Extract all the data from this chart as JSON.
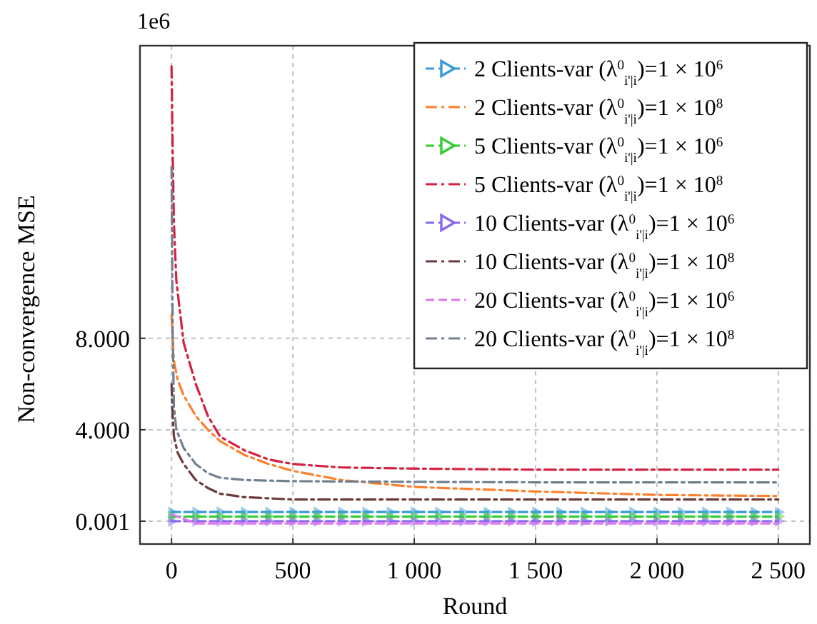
{
  "chart_data": {
    "type": "line",
    "xlabel": "Round",
    "ylabel": "Non-convergence MSE",
    "annotations": [
      "1e6"
    ],
    "xlim": [
      -130,
      2630
    ],
    "ylim": [
      -1,
      20.8
    ],
    "xticks": [
      0,
      500,
      {
        "value": 1000,
        "label": "1 000"
      },
      {
        "value": 1500,
        "label": "1 500"
      },
      {
        "value": 2000,
        "label": "2 000"
      },
      {
        "value": 2500,
        "label": "2 500"
      }
    ],
    "yticks": [
      {
        "value": 0.001,
        "label": "0.001"
      },
      {
        "value": 4,
        "label": "4.000"
      },
      {
        "value": 8,
        "label": "8.000"
      }
    ],
    "grid": true,
    "legend": "top right",
    "series": [
      {
        "name": "2 Clients-var (λ$^{0}$$_{i'|i}$)=1 × 10$^{6}$",
        "color": "#3a9ad9",
        "marker": "triangle",
        "line_style": "dashed",
        "x": [
          0,
          100,
          200,
          300,
          400,
          500,
          600,
          700,
          800,
          900,
          1000,
          1100,
          1200,
          1300,
          1400,
          1500,
          1600,
          1700,
          1800,
          1900,
          2000,
          2100,
          2200,
          2300,
          2400,
          2500
        ],
        "values": [
          0.4,
          0.4,
          0.4,
          0.4,
          0.4,
          0.4,
          0.4,
          0.4,
          0.4,
          0.4,
          0.4,
          0.4,
          0.4,
          0.4,
          0.4,
          0.4,
          0.4,
          0.4,
          0.4,
          0.4,
          0.4,
          0.4,
          0.4,
          0.4,
          0.4,
          0.4
        ]
      },
      {
        "name": "2 Clients-var (λ$^{0}$$_{i'|i}$)=1 × 10$^{8}$",
        "color": "#ff7f2a",
        "marker": "none",
        "line_style": "dashdot",
        "x": [
          0,
          10,
          25,
          50,
          100,
          150,
          200,
          300,
          400,
          500,
          700,
          1000,
          1500,
          2000,
          2500
        ],
        "values": [
          9,
          7,
          6.2,
          5.5,
          4.6,
          4,
          3.5,
          2.9,
          2.5,
          2.2,
          1.8,
          1.5,
          1.3,
          1.15,
          1.1
        ]
      },
      {
        "name": "5 Clients-var (λ$^{0}$$_{i'|i}$)=1 × 10$^{6}$",
        "color": "#33cc33",
        "marker": "triangle",
        "line_style": "dashed",
        "x": [
          0,
          100,
          200,
          300,
          400,
          500,
          600,
          700,
          800,
          900,
          1000,
          1100,
          1200,
          1300,
          1400,
          1500,
          1600,
          1700,
          1800,
          1900,
          2000,
          2100,
          2200,
          2300,
          2400,
          2500
        ],
        "values": [
          0.2,
          0.2,
          0.2,
          0.2,
          0.2,
          0.2,
          0.2,
          0.2,
          0.2,
          0.2,
          0.2,
          0.2,
          0.2,
          0.2,
          0.2,
          0.2,
          0.2,
          0.2,
          0.2,
          0.2,
          0.2,
          0.2,
          0.2,
          0.2,
          0.2,
          0.2
        ]
      },
      {
        "name": "5 Clients-var (λ$^{0}$$_{i'|i}$)=1 × 10$^{8}$",
        "color": "#d62040",
        "marker": "none",
        "line_style": "dashdot",
        "x": [
          0,
          5,
          10,
          20,
          50,
          100,
          150,
          200,
          300,
          400,
          500,
          700,
          1000,
          1500,
          2000,
          2500
        ],
        "values": [
          19.9,
          16,
          13,
          10.5,
          7.8,
          6,
          4.6,
          3.7,
          3.1,
          2.7,
          2.5,
          2.35,
          2.3,
          2.25,
          2.25,
          2.25
        ]
      },
      {
        "name": "10 Clients-var (λ$^{0}$$_{i'|i}$)=1 × 10$^{6}$",
        "color": "#8866ee",
        "marker": "triangle",
        "line_style": "dashed",
        "x": [
          0,
          100,
          200,
          300,
          400,
          500,
          600,
          700,
          800,
          900,
          1000,
          1100,
          1200,
          1300,
          1400,
          1500,
          1600,
          1700,
          1800,
          1900,
          2000,
          2100,
          2200,
          2300,
          2400,
          2500
        ],
        "values": [
          0,
          0,
          0,
          0,
          0,
          0,
          0,
          0,
          0,
          0,
          0,
          0,
          0,
          0,
          0,
          0,
          0,
          0,
          0,
          0,
          0,
          0,
          0,
          0,
          0,
          0
        ]
      },
      {
        "name": "10 Clients-var (λ$^{0}$$_{i'|i}$)=1 × 10$^{8}$",
        "color": "#6b3a3a",
        "marker": "none",
        "line_style": "dashdot",
        "x": [
          0,
          5,
          10,
          25,
          50,
          100,
          150,
          200,
          300,
          500,
          1000,
          1500,
          2000,
          2500
        ],
        "values": [
          6,
          4.5,
          3.7,
          3,
          2.5,
          1.8,
          1.45,
          1.2,
          1.05,
          0.95,
          0.95,
          0.95,
          0.95,
          0.95
        ]
      },
      {
        "name": "20 Clients-var (λ$^{0}$$_{i'|i}$)=1 × 10$^{6}$",
        "color": "#dd77ee",
        "line_style": "dashed",
        "x": [
          0,
          50,
          100,
          200,
          500,
          1000,
          1500,
          2000,
          2500
        ],
        "values": [
          0.3,
          0.1,
          -0.1,
          -0.1,
          -0.1,
          -0.1,
          -0.1,
          -0.1,
          -0.1
        ]
      },
      {
        "name": "20 Clients-var (λ$^{0}$$_{i'|i}$)=1 × 10$^{8}$",
        "color": "#708090",
        "marker": "none",
        "line_style": "dashdot",
        "x": [
          0,
          5,
          10,
          20,
          50,
          100,
          150,
          200,
          300,
          500,
          1000,
          1500,
          2000,
          2500
        ],
        "values": [
          15.5,
          8,
          5,
          4,
          3.2,
          2.5,
          2.1,
          1.9,
          1.8,
          1.75,
          1.72,
          1.7,
          1.7,
          1.7
        ]
      }
    ]
  }
}
